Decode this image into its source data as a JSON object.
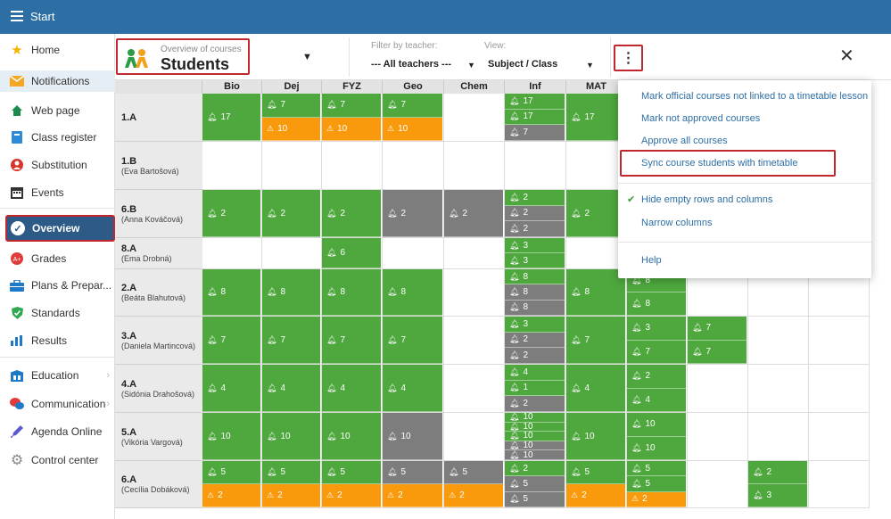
{
  "app": {
    "title": "Start"
  },
  "sidebar": {
    "items": [
      {
        "label": "Home",
        "icon": "star-icon"
      },
      {
        "label": "Notifications",
        "icon": "envelope-icon"
      },
      {
        "label": "Web page",
        "icon": "home-icon"
      },
      {
        "label": "Class register",
        "icon": "book-icon"
      },
      {
        "label": "Substitution",
        "icon": "person-icon"
      },
      {
        "label": "Events",
        "icon": "calendar-icon"
      },
      {
        "label": "Overview",
        "icon": "check-circle-icon"
      },
      {
        "label": "Grades",
        "icon": "grades-icon"
      },
      {
        "label": "Plans & Prepar...",
        "icon": "briefcase-icon"
      },
      {
        "label": "Standards",
        "icon": "shield-icon"
      },
      {
        "label": "Results",
        "icon": "bar-chart-icon"
      },
      {
        "label": "Education",
        "icon": "education-icon"
      },
      {
        "label": "Communication",
        "icon": "chat-icon"
      },
      {
        "label": "Agenda Online",
        "icon": "pen-icon"
      },
      {
        "label": "Control center",
        "icon": "gear-icon"
      }
    ]
  },
  "header": {
    "overview_sub": "Overview of courses",
    "overview_main": "Students",
    "filter_teacher_label": "Filter by teacher:",
    "filter_teacher_value": "--- All teachers ---",
    "view_label": "View:",
    "view_value": "Subject / Class",
    "dropdown_arrow": "▼",
    "small_arrow": "▼",
    "kebab": "⋮",
    "close": "✕"
  },
  "grid": {
    "columns": [
      "Bio",
      "Dej",
      "FYZ",
      "Geo",
      "Chem",
      "Inf",
      "MAT",
      "",
      "",
      "",
      ""
    ],
    "rows": [
      {
        "class": "1.A",
        "teacher": ""
      },
      {
        "class": "1.B",
        "teacher": "(Eva Bartošová)"
      },
      {
        "class": "6.B",
        "teacher": "(Anna Kováčová)"
      },
      {
        "class": "8.A",
        "teacher": "(Ema Drobná)"
      },
      {
        "class": "2.A",
        "teacher": "(Beáta Blahutová)"
      },
      {
        "class": "3.A",
        "teacher": "(Daniela Martincová)"
      },
      {
        "class": "4.A",
        "teacher": "(Sidónia Drahošová)"
      },
      {
        "class": "5.A",
        "teacher": "(Vikória Vargová)"
      },
      {
        "class": "6.A",
        "teacher": "(Cecília Dobáková)"
      }
    ],
    "cells": [
      [
        [
          [
            "g",
            "17"
          ]
        ],
        [
          [
            "g",
            "7"
          ],
          [
            "o",
            "10"
          ]
        ],
        [
          [
            "g",
            "7"
          ],
          [
            "o",
            "10"
          ]
        ],
        [
          [
            "g",
            "7"
          ],
          [
            "o",
            "10"
          ]
        ],
        [],
        [
          [
            "g",
            "17"
          ],
          [
            "g",
            "17"
          ],
          [
            "gr",
            "7"
          ]
        ],
        [
          [
            "g",
            "17"
          ]
        ],
        [],
        [],
        [],
        []
      ],
      [
        [],
        [],
        [],
        [],
        [],
        [],
        [],
        [],
        [],
        [],
        []
      ],
      [
        [
          [
            "g",
            "2"
          ]
        ],
        [
          [
            "g",
            "2"
          ]
        ],
        [
          [
            "g",
            "2"
          ]
        ],
        [
          [
            "gr",
            "2"
          ]
        ],
        [
          [
            "gr",
            "2"
          ]
        ],
        [
          [
            "g",
            "2"
          ],
          [
            "gr",
            "2"
          ],
          [
            "gr",
            "2"
          ]
        ],
        [
          [
            "g",
            "2"
          ]
        ],
        [],
        [],
        [],
        []
      ],
      [
        [],
        [],
        [
          [
            "g",
            "6"
          ]
        ],
        [],
        [],
        [
          [
            "g",
            "3"
          ],
          [
            "g",
            "3"
          ]
        ],
        [],
        [],
        [],
        [],
        []
      ],
      [
        [
          [
            "g",
            "8"
          ]
        ],
        [
          [
            "g",
            "8"
          ]
        ],
        [
          [
            "g",
            "8"
          ]
        ],
        [
          [
            "g",
            "8"
          ]
        ],
        [],
        [
          [
            "g",
            "8"
          ],
          [
            "gr",
            "8"
          ],
          [
            "gr",
            "8"
          ]
        ],
        [
          [
            "g",
            "8"
          ]
        ],
        [
          [
            "g",
            "8"
          ],
          [
            "g",
            "8"
          ]
        ],
        [],
        [],
        []
      ],
      [
        [
          [
            "g",
            "7"
          ]
        ],
        [
          [
            "g",
            "7"
          ]
        ],
        [
          [
            "g",
            "7"
          ]
        ],
        [
          [
            "g",
            "7"
          ]
        ],
        [],
        [
          [
            "g",
            "3"
          ],
          [
            "gr",
            "2"
          ],
          [
            "gr",
            "2"
          ]
        ],
        [
          [
            "g",
            "7"
          ]
        ],
        [
          [
            "g",
            "3"
          ],
          [
            "g",
            "7"
          ]
        ],
        [
          [
            "g",
            "7"
          ],
          [
            "g",
            "7"
          ]
        ],
        [],
        []
      ],
      [
        [
          [
            "g",
            "4"
          ]
        ],
        [
          [
            "g",
            "4"
          ]
        ],
        [
          [
            "g",
            "4"
          ]
        ],
        [
          [
            "g",
            "4"
          ]
        ],
        [],
        [
          [
            "g",
            "4"
          ],
          [
            "g",
            "1"
          ],
          [
            "gr",
            "2"
          ]
        ],
        [
          [
            "g",
            "4"
          ]
        ],
        [
          [
            "g",
            "2"
          ],
          [
            "g",
            "4"
          ]
        ],
        [],
        [],
        []
      ],
      [
        [
          [
            "g",
            "10"
          ]
        ],
        [
          [
            "g",
            "10"
          ]
        ],
        [
          [
            "g",
            "10"
          ]
        ],
        [
          [
            "gr",
            "10"
          ]
        ],
        [],
        [
          [
            "g",
            "10"
          ],
          [
            "g",
            "10"
          ],
          [
            "g",
            "10"
          ],
          [
            "gr",
            "10"
          ],
          [
            "gr",
            "10"
          ]
        ],
        [
          [
            "g",
            "10"
          ]
        ],
        [
          [
            "g",
            "10"
          ],
          [
            "g",
            "10"
          ]
        ],
        [],
        [],
        []
      ],
      [
        [
          [
            "g",
            "5"
          ],
          [
            "o",
            "2"
          ]
        ],
        [
          [
            "g",
            "5"
          ],
          [
            "o",
            "2"
          ]
        ],
        [
          [
            "g",
            "5"
          ],
          [
            "o",
            "2"
          ]
        ],
        [
          [
            "gr",
            "5"
          ],
          [
            "o",
            "2"
          ]
        ],
        [
          [
            "gr",
            "5"
          ],
          [
            "o",
            "2"
          ]
        ],
        [
          [
            "g",
            "2"
          ],
          [
            "gr",
            "5"
          ],
          [
            "gr",
            "5"
          ]
        ],
        [
          [
            "g",
            "5"
          ],
          [
            "o",
            "2"
          ]
        ],
        [
          [
            "g",
            "5"
          ],
          [
            "g",
            "5"
          ],
          [
            "o",
            "2"
          ]
        ],
        [],
        [
          [
            "g",
            "2"
          ],
          [
            "g",
            "3"
          ]
        ],
        []
      ]
    ]
  },
  "menu": {
    "items": [
      "Mark official courses not linked to a timetable lesson",
      "Mark not approved courses",
      "Approve all courses",
      "Sync course students with timetable",
      "Hide empty rows and columns",
      "Narrow columns",
      "Help"
    ],
    "check": "✔"
  },
  "colors": {
    "topbar": "#2d6ea5",
    "green": "#4ea83e",
    "orange": "#f89a0c",
    "gray": "#7d7d7d",
    "highlight": "#c0282f"
  }
}
